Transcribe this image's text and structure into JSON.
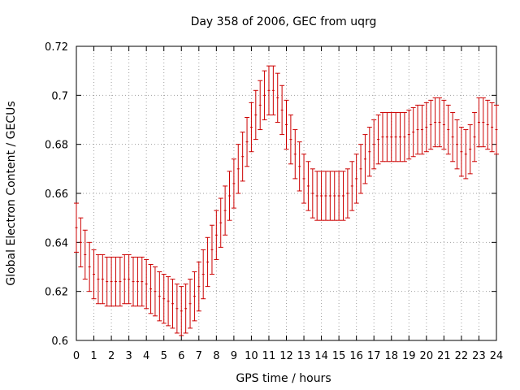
{
  "chart_data": {
    "type": "scatter",
    "title": "Day 358 of 2006, GEC from uqrg",
    "xlabel": "GPS time / hours",
    "ylabel": "Global Electron Content / GECUs",
    "xlim": [
      0,
      24
    ],
    "ylim": [
      0.6,
      0.72
    ],
    "xticks": [
      0,
      1,
      2,
      3,
      4,
      5,
      6,
      7,
      8,
      9,
      10,
      11,
      12,
      13,
      14,
      15,
      16,
      17,
      18,
      19,
      20,
      21,
      22,
      23,
      24
    ],
    "xtick_labels": [
      "0",
      "1",
      "2",
      "3",
      "4",
      "5",
      "6",
      "7",
      "8",
      "9",
      "10",
      "11",
      "12",
      "13",
      "14",
      "15",
      "16",
      "17",
      "18",
      "19",
      "20",
      "21",
      "22",
      "23",
      "24"
    ],
    "yticks": [
      0.6,
      0.62,
      0.64,
      0.66,
      0.68,
      0.7,
      0.72
    ],
    "ytick_labels": [
      "0.6",
      "0.62",
      "0.64",
      "0.66",
      "0.68",
      "0.7",
      "0.72"
    ],
    "grid": true,
    "series": [
      {
        "name": "GEC",
        "color": "#cc0000",
        "x": [
          0,
          0.25,
          0.5,
          0.75,
          1,
          1.25,
          1.5,
          1.75,
          2,
          2.25,
          2.5,
          2.75,
          3,
          3.25,
          3.5,
          3.75,
          4,
          4.25,
          4.5,
          4.75,
          5,
          5.25,
          5.5,
          5.75,
          6,
          6.25,
          6.5,
          6.75,
          7,
          7.25,
          7.5,
          7.75,
          8,
          8.25,
          8.5,
          8.75,
          9,
          9.25,
          9.5,
          9.75,
          10,
          10.25,
          10.5,
          10.75,
          11,
          11.25,
          11.5,
          11.75,
          12,
          12.25,
          12.5,
          12.75,
          13,
          13.25,
          13.5,
          13.75,
          14,
          14.25,
          14.5,
          14.75,
          15,
          15.25,
          15.5,
          15.75,
          16,
          16.25,
          16.5,
          16.75,
          17,
          17.25,
          17.5,
          17.75,
          18,
          18.25,
          18.5,
          18.75,
          19,
          19.25,
          19.5,
          19.75,
          20,
          20.25,
          20.5,
          20.75,
          21,
          21.25,
          21.5,
          21.75,
          22,
          22.25,
          22.5,
          22.75,
          23,
          23.25,
          23.5,
          23.75,
          24
        ],
        "y": [
          0.646,
          0.64,
          0.635,
          0.63,
          0.627,
          0.625,
          0.625,
          0.624,
          0.624,
          0.624,
          0.624,
          0.625,
          0.625,
          0.624,
          0.624,
          0.624,
          0.623,
          0.621,
          0.62,
          0.618,
          0.617,
          0.616,
          0.615,
          0.613,
          0.612,
          0.613,
          0.615,
          0.618,
          0.622,
          0.627,
          0.632,
          0.637,
          0.643,
          0.648,
          0.653,
          0.659,
          0.664,
          0.67,
          0.675,
          0.681,
          0.687,
          0.692,
          0.696,
          0.7,
          0.702,
          0.702,
          0.699,
          0.694,
          0.688,
          0.682,
          0.676,
          0.671,
          0.666,
          0.663,
          0.66,
          0.659,
          0.659,
          0.659,
          0.659,
          0.659,
          0.659,
          0.659,
          0.66,
          0.663,
          0.666,
          0.67,
          0.674,
          0.677,
          0.68,
          0.682,
          0.683,
          0.683,
          0.683,
          0.683,
          0.683,
          0.683,
          0.684,
          0.685,
          0.686,
          0.686,
          0.687,
          0.688,
          0.689,
          0.689,
          0.688,
          0.686,
          0.683,
          0.68,
          0.677,
          0.676,
          0.678,
          0.683,
          0.689,
          0.689,
          0.688,
          0.687,
          0.686
        ],
        "err": [
          0.01,
          0.01,
          0.01,
          0.01,
          0.01,
          0.01,
          0.01,
          0.01,
          0.01,
          0.01,
          0.01,
          0.01,
          0.01,
          0.01,
          0.01,
          0.01,
          0.01,
          0.01,
          0.01,
          0.01,
          0.01,
          0.01,
          0.01,
          0.01,
          0.01,
          0.01,
          0.01,
          0.01,
          0.01,
          0.01,
          0.01,
          0.01,
          0.01,
          0.01,
          0.01,
          0.01,
          0.01,
          0.01,
          0.01,
          0.01,
          0.01,
          0.01,
          0.01,
          0.01,
          0.01,
          0.01,
          0.01,
          0.01,
          0.01,
          0.01,
          0.01,
          0.01,
          0.01,
          0.01,
          0.01,
          0.01,
          0.01,
          0.01,
          0.01,
          0.01,
          0.01,
          0.01,
          0.01,
          0.01,
          0.01,
          0.01,
          0.01,
          0.01,
          0.01,
          0.01,
          0.01,
          0.01,
          0.01,
          0.01,
          0.01,
          0.01,
          0.01,
          0.01,
          0.01,
          0.01,
          0.01,
          0.01,
          0.01,
          0.01,
          0.01,
          0.01,
          0.01,
          0.01,
          0.01,
          0.01,
          0.01,
          0.01,
          0.01,
          0.01,
          0.01,
          0.01,
          0.01
        ]
      }
    ]
  }
}
